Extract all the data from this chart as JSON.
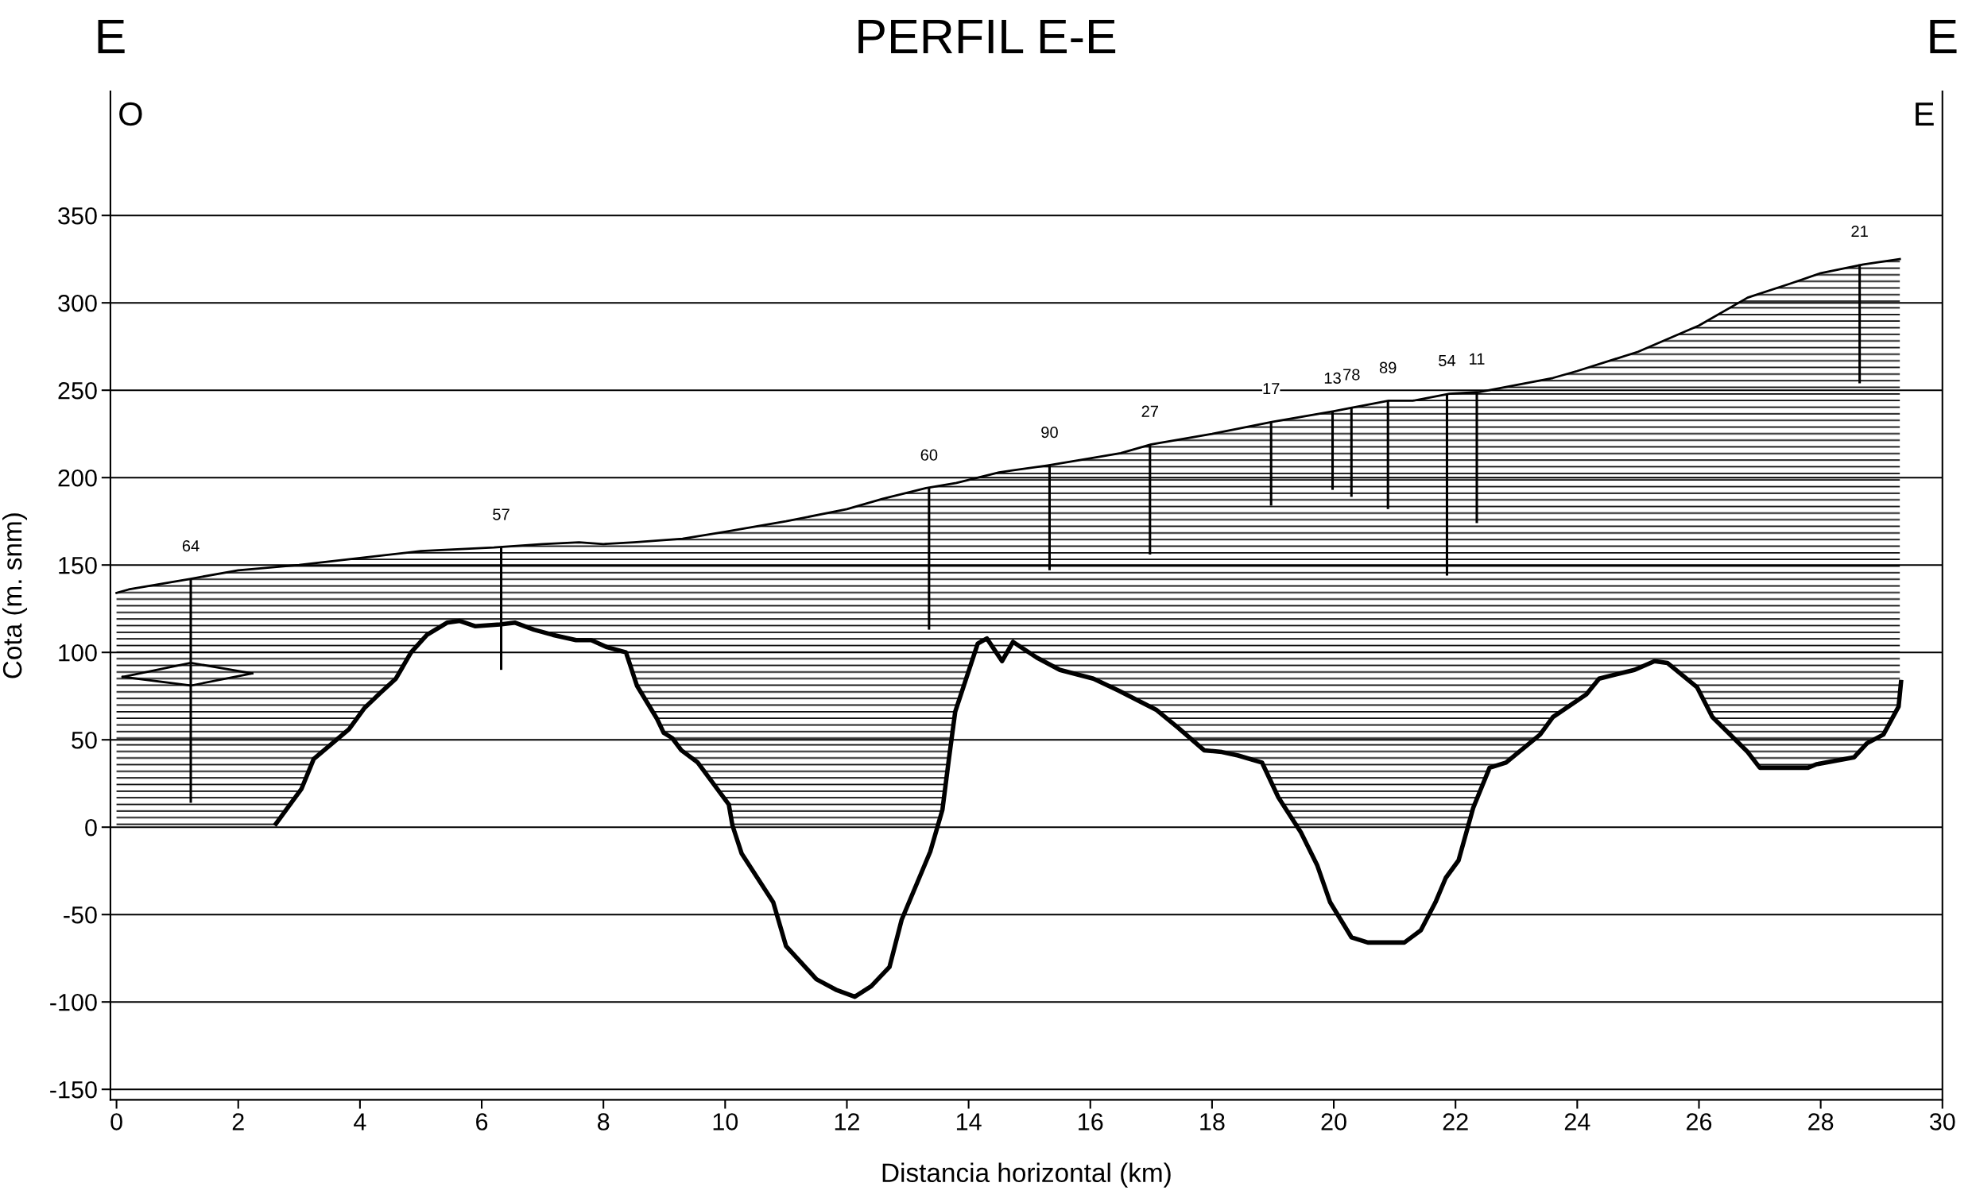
{
  "chart_data": {
    "type": "line",
    "title": "PERFIL E-E",
    "xlabel": "Distancia horizontal (km)",
    "ylabel": "Cota (m. snm)",
    "xlim": [
      -0.1,
      30
    ],
    "ylim": [
      -156,
      421
    ],
    "xticks": [
      0,
      2,
      4,
      6,
      8,
      10,
      12,
      14,
      16,
      18,
      20,
      22,
      24,
      26,
      28,
      30
    ],
    "yticks": [
      -150,
      -100,
      -50,
      0,
      50,
      100,
      150,
      200,
      250,
      300,
      350
    ],
    "grid": "y",
    "series": [
      {
        "type": "area",
        "color": "#000000",
        "x": [
          0,
          0.2,
          1.2,
          2,
          3,
          4,
          5,
          6.2,
          7,
          7.6,
          8,
          8.5,
          9.3,
          10,
          11,
          12,
          12.6,
          13.3,
          13.8,
          14.5,
          15.3,
          16,
          16.5,
          17,
          18,
          19,
          20,
          20.3,
          20.9,
          21.3,
          21.9,
          22.4,
          23,
          23.6,
          24,
          25,
          26,
          26.8,
          27.5,
          28,
          28.7,
          29.3
        ],
        "values": [
          134,
          136,
          142,
          147,
          150,
          154,
          158,
          160,
          162,
          163,
          162,
          163,
          165,
          169,
          175,
          182,
          188,
          194,
          197,
          203,
          207,
          211,
          214,
          219,
          225,
          232,
          238,
          240,
          244,
          244,
          248,
          249,
          253,
          257,
          261,
          272,
          287,
          303,
          311,
          317,
          322,
          325
        ]
      },
      {
        "color": "#000000",
        "x": [
          2.62,
          3.04,
          3.24,
          3.82,
          4.07,
          4.34,
          4.59,
          4.84,
          5.1,
          5.43,
          5.64,
          5.89,
          6.3,
          6.55,
          6.86,
          7.17,
          7.55,
          7.8,
          8.06,
          8.37,
          8.55,
          8.88,
          8.99,
          9.13,
          9.28,
          9.55,
          10.06,
          10.12,
          10.27,
          10.79,
          11.0,
          11.5,
          11.82,
          12.13,
          12.4,
          12.7,
          12.9,
          13.37,
          13.57,
          13.68,
          13.78,
          14.15,
          14.3,
          14.55,
          14.73,
          15.12,
          15.5,
          16.05,
          16.47,
          17.09,
          17.44,
          17.87,
          18.16,
          18.43,
          18.82,
          19.09,
          19.46,
          19.73,
          19.94,
          20.29,
          20.56,
          21.16,
          21.43,
          21.67,
          21.84,
          22.05,
          22.29,
          22.56,
          22.83,
          23.39,
          23.6,
          24.15,
          24.36,
          24.94,
          25.27,
          25.48,
          25.97,
          26.22,
          26.8,
          27.0,
          27.79,
          27.93,
          28.55,
          28.76,
          29.03,
          29.28,
          29.32
        ],
        "values": [
          2,
          22,
          39,
          56,
          68,
          77,
          85,
          100,
          110,
          117,
          118,
          115,
          116,
          117,
          113,
          110,
          107,
          107,
          103,
          100,
          81,
          62,
          54,
          51,
          44,
          37,
          13,
          1,
          -15,
          -43,
          -68,
          -87,
          -93,
          -97,
          -91,
          -80,
          -53,
          -14,
          10,
          40,
          66,
          105,
          108,
          95,
          106,
          97,
          90,
          85,
          78,
          67,
          57,
          44,
          43,
          41,
          37,
          17,
          -3,
          -22,
          -43,
          -63,
          -66,
          -66,
          -59,
          -43,
          -29,
          -19,
          11,
          34,
          37,
          53,
          63,
          76,
          85,
          90,
          95,
          94,
          80,
          63,
          43,
          34,
          34,
          36,
          40,
          48,
          53,
          69,
          83
        ]
      },
      {
        "color": "#000000",
        "x": [
          0.1,
          1.22,
          2.23
        ],
        "values": [
          86,
          94,
          88
        ]
      },
      {
        "color": "#000000",
        "x": [
          0.1,
          1.22,
          2.23
        ],
        "values": [
          86,
          81,
          88
        ]
      },
      {
        "type": "bar",
        "color": "#000000",
        "x": [
          1.22,
          6.32,
          13.35,
          15.33,
          16.98,
          18.97,
          19.98,
          20.29,
          20.89,
          21.86,
          22.35,
          28.64
        ],
        "base": [
          14,
          90,
          113,
          147,
          156,
          184,
          193,
          189,
          182,
          144,
          174,
          254
        ],
        "values": [
          128,
          70,
          81,
          60,
          63,
          48,
          45,
          51,
          62,
          104,
          75,
          68
        ]
      }
    ],
    "annotations": [
      "E",
      "E",
      "O",
      "E",
      {
        "text": "64",
        "x": 1.22,
        "y": 142
      },
      {
        "text": "57",
        "x": 6.32,
        "y": 160
      },
      {
        "text": "60",
        "x": 13.35,
        "y": 194
      },
      {
        "text": "90",
        "x": 15.33,
        "y": 207
      },
      {
        "text": "27",
        "x": 16.98,
        "y": 219
      },
      {
        "text": "17",
        "x": 18.97,
        "y": 232
      },
      {
        "text": "13",
        "x": 19.98,
        "y": 238
      },
      {
        "text": "78",
        "x": 20.29,
        "y": 240
      },
      {
        "text": "89",
        "x": 20.89,
        "y": 244
      },
      {
        "text": "54",
        "x": 21.86,
        "y": 248
      },
      {
        "text": "11",
        "x": 22.35,
        "y": 249
      },
      {
        "text": "21",
        "x": 28.64,
        "y": 322
      }
    ]
  }
}
